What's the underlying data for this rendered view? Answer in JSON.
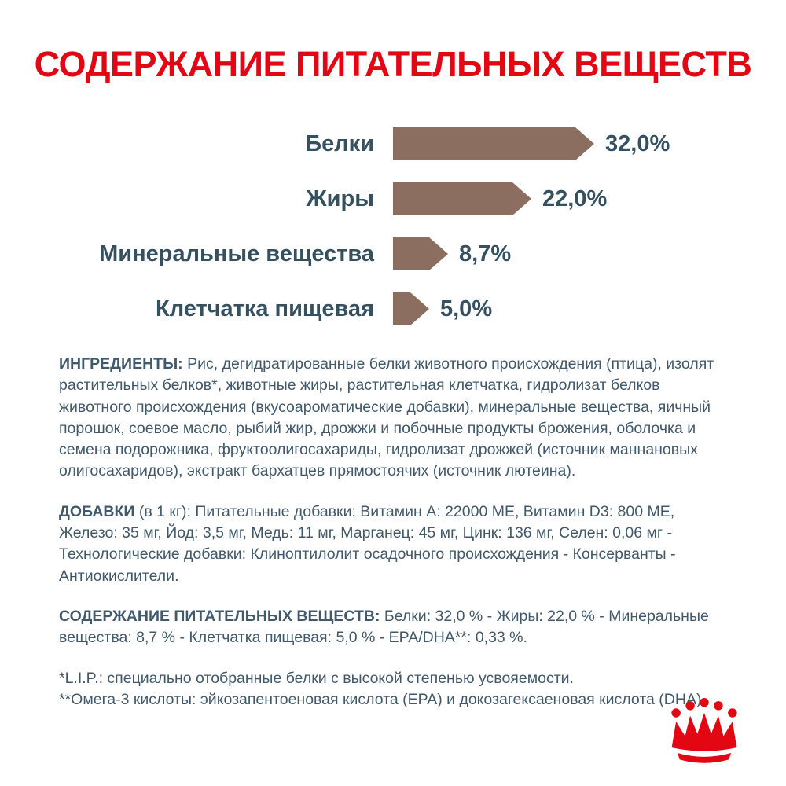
{
  "page": {
    "title": "СОДЕРЖАНИЕ ПИТАТЕЛЬНЫХ ВЕЩЕСТВ"
  },
  "colors": {
    "brand_red": "#e30613",
    "bar_brown": "#8c6e60",
    "text_body": "#41596a",
    "text_chart": "#35505f"
  },
  "chart_data": {
    "type": "bar",
    "orientation": "horizontal",
    "title": "СОДЕРЖАНИЕ ПИТАТЕЛЬНЫХ ВЕЩЕСТВ",
    "categories": [
      "Белки",
      "Жиры",
      "Минеральные вещества",
      "Клетчатка пищевая"
    ],
    "values": [
      32.0,
      22.0,
      8.7,
      5.0
    ],
    "value_labels": [
      "32,0%",
      "22,0%",
      "8,7%",
      "5,0%"
    ],
    "bar_color": "#8c6e60",
    "xlim": [
      0,
      35
    ],
    "grid": false,
    "legend": false,
    "bar_shape": "arrow-pennant"
  },
  "sections": {
    "ingredients": {
      "label": "ИНГРЕДИЕНТЫ:",
      "text": "Рис, дегидратированные белки животного происхождения (птица), изолят растительных белков*, животные жиры, растительная клетчатка, гидролизат белков животного происхождения (вкусоароматические добавки), минеральные вещества, яичный порошок, соевое масло, рыбий жир, дрожжи и побочные продукты брожения, оболочка и семена подорожника, фруктоолигосахариды, гидролизат дрожжей (источник маннановых олигосахаридов), экстракт бархатцев прямостоячих (источник лютеина)."
    },
    "additives": {
      "label": "ДОБАВКИ",
      "label_suffix": "(в 1 кг):",
      "text": "Питательные добавки: Витамин A: 22000 МЕ, Витамин D3: 800 МЕ, Железо: 35 мг, Йод: 3,5 мг, Медь: 11 мг, Марганец: 45 мг, Цинк: 136 мг, Селен: 0,06 мг - Технологические добавки: Клиноптилолит осадочного происхождения - Консерванты - Антиокислители."
    },
    "analysis": {
      "label": "СОДЕРЖАНИЕ ПИТАТЕЛЬНЫХ ВЕЩЕСТВ:",
      "text": "Белки: 32,0 % - Жиры: 22,0 % - Минеральные вещества: 8,7 % - Клетчатка пищевая: 5,0 % - EPA/DHA**: 0,33 %."
    },
    "footnotes": [
      "*L.I.P.: специально отобранные белки с высокой степенью усвояемости.",
      "**Омега-3 кислоты: эйкозапентоеновая кислота (EPA) и докозагексаеновая кислота (DHA)."
    ]
  },
  "logo": {
    "icon": "royal-canin-crown"
  }
}
